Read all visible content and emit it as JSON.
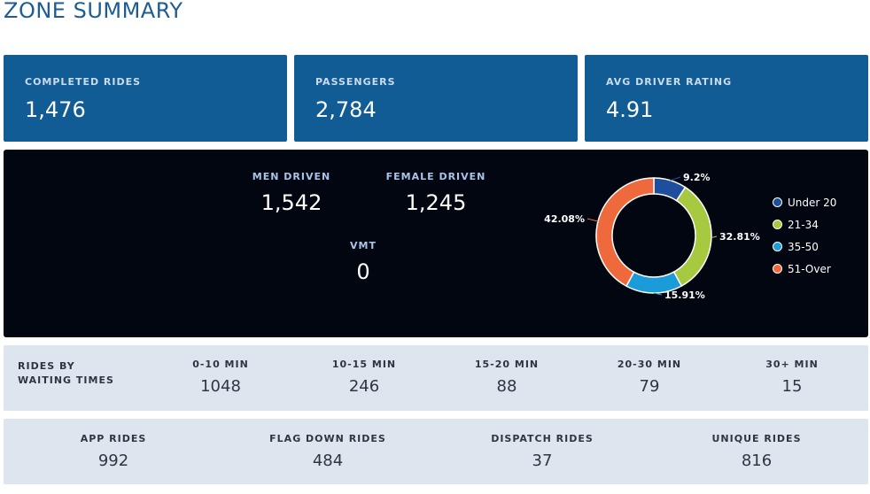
{
  "page_title": "ZONE SUMMARY",
  "kpis": [
    {
      "label": "COMPLETED RIDES",
      "value": "1,476"
    },
    {
      "label": "PASSENGERS",
      "value": "2,784"
    },
    {
      "label": "AVG DRIVER RATING",
      "value": "4.91"
    }
  ],
  "drivers": {
    "men_label": "MEN DRIVEN",
    "men_value": "1,542",
    "female_label": "FEMALE DRIVEN",
    "female_value": "1,245",
    "vmt_label": "VMT",
    "vmt_value": "0"
  },
  "chart_data": {
    "type": "pie",
    "variant": "donut",
    "slices": [
      {
        "label": "Under 20",
        "value": 9.2,
        "display": "9.2%",
        "color": "#1f4f9c"
      },
      {
        "label": "21-34",
        "value": 32.81,
        "display": "32.81%",
        "color": "#a7c93f"
      },
      {
        "label": "35-50",
        "value": 15.91,
        "display": "15.91%",
        "color": "#1b9bd7"
      },
      {
        "label": "51-Over",
        "value": 42.08,
        "display": "42.08%",
        "color": "#ee6a3c"
      }
    ],
    "legend": [
      "Under 20",
      "21-34",
      "35-50",
      "51-Over"
    ],
    "legend_position": "right"
  },
  "waiting": {
    "label": "RIDES BY WAITING TIMES",
    "buckets": [
      {
        "label": "0-10 MIN",
        "value": "1048"
      },
      {
        "label": "10-15 MIN",
        "value": "246"
      },
      {
        "label": "15-20 MIN",
        "value": "88"
      },
      {
        "label": "20-30 MIN",
        "value": "79"
      },
      {
        "label": "30+ MIN",
        "value": "15"
      }
    ]
  },
  "ride_types": [
    {
      "label": "APP RIDES",
      "value": "992"
    },
    {
      "label": "FLAG DOWN RIDES",
      "value": "484"
    },
    {
      "label": "DISPATCH RIDES",
      "value": "37"
    },
    {
      "label": "UNIQUE RIDES",
      "value": "816"
    }
  ]
}
